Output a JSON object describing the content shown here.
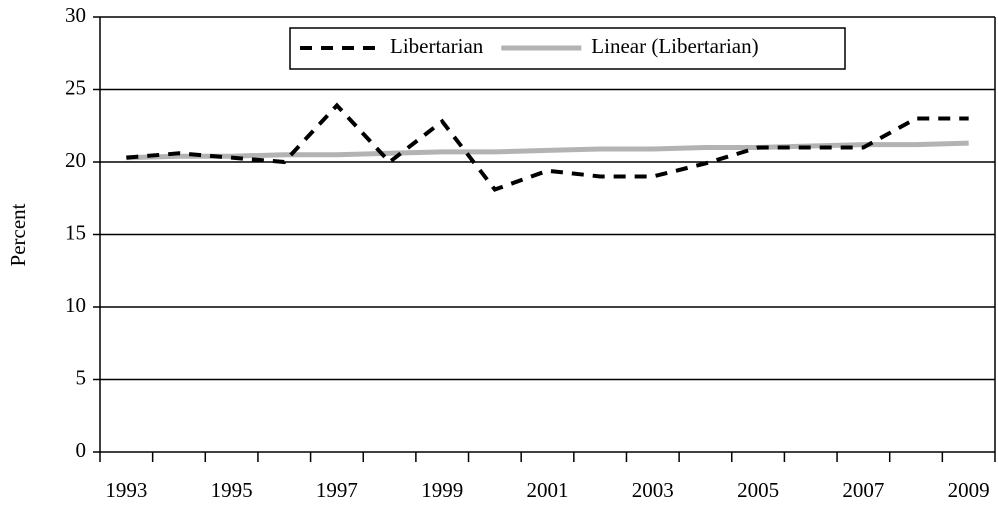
{
  "chart_data": {
    "type": "line",
    "y_label": "Percent",
    "categories": [
      "1993",
      null,
      "1995",
      null,
      "1997",
      null,
      "1999",
      null,
      "2001",
      null,
      "2003",
      null,
      "2005",
      null,
      "2007",
      null,
      "2009"
    ],
    "series": [
      {
        "name": "Libertarian",
        "color": "#000000",
        "dash": true,
        "values": [
          20.3,
          20.6,
          20.3,
          20.0,
          23.9,
          20.0,
          22.8,
          18.1,
          19.4,
          19.0,
          19.0,
          19.9,
          21.0,
          21.0,
          21.0,
          23.0,
          23.0
        ]
      },
      {
        "name": "Linear (Libertarian)",
        "color": "#b3b3b3",
        "dash": false,
        "values": [
          20.3,
          20.4,
          20.4,
          20.5,
          20.5,
          20.6,
          20.7,
          20.7,
          20.8,
          20.9,
          20.9,
          21.0,
          21.0,
          21.1,
          21.2,
          21.2,
          21.3
        ]
      }
    ],
    "ylim": [
      0,
      30
    ],
    "yticks": [
      0,
      5,
      10,
      15,
      20,
      25,
      30
    ],
    "grid": true,
    "legend": "top"
  }
}
